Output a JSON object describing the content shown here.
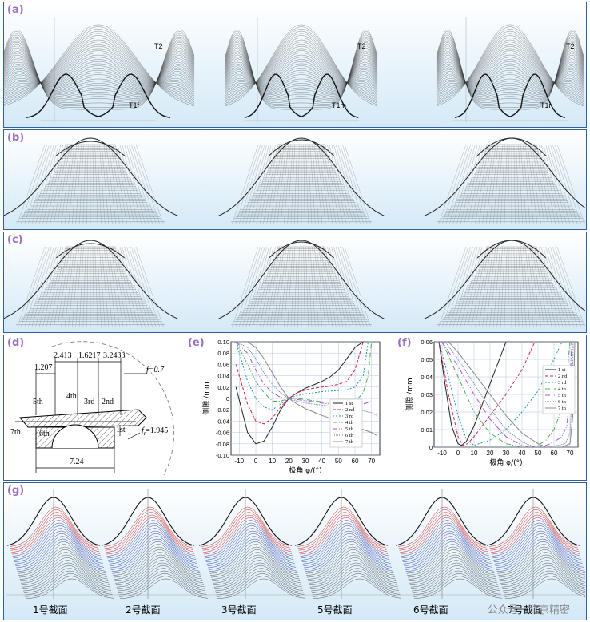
{
  "panels": {
    "a": {
      "label": "(a)",
      "curves": [
        "T2",
        "T1f",
        "T2",
        "T1m",
        "T2",
        "T1r"
      ]
    },
    "b": {
      "label": "(b)"
    },
    "c": {
      "label": "(c)"
    },
    "d": {
      "label": "(d)",
      "dims": {
        "d1": "1.207",
        "d2": "2.413",
        "d3": "1.6217",
        "d4": "3.2433",
        "f": "f=0.7",
        "fr": "f",
        "fr_sub": "r",
        "fr_val": "=1.945",
        "width": "7.24"
      },
      "teeth": [
        "5th",
        "4th",
        "3rd",
        "2nd",
        "7th",
        "6th",
        "1st"
      ]
    },
    "e": {
      "label": "(e)"
    },
    "f": {
      "label": "(f)"
    },
    "g": {
      "label": "(g)",
      "captions": [
        "1号截面",
        "2号截面",
        "3号截面",
        "5号截面",
        "6号截面",
        "7号截面"
      ]
    }
  },
  "watermark": "公众号 · 北京精密",
  "chart_data": [
    {
      "type": "line",
      "panel": "e",
      "xlabel": "极角 φ/(°)",
      "ylabel": "侧隙 /mm",
      "xlim": [
        -15,
        75
      ],
      "ylim": [
        -0.1,
        0.1
      ],
      "xticks": [
        -10,
        0,
        10,
        20,
        30,
        40,
        50,
        60,
        70
      ],
      "yticks": [
        -0.1,
        -0.08,
        -0.06,
        -0.04,
        -0.02,
        0,
        0.02,
        0.04,
        0.06,
        0.08,
        0.1
      ],
      "grid": true,
      "legend": "bottom-right",
      "series": [
        {
          "name": "1 st",
          "color": "#222222",
          "dash": "",
          "x": [
            -12,
            -5,
            0,
            5,
            10,
            15,
            20,
            25,
            30,
            35,
            40,
            45,
            50,
            55,
            60,
            65
          ],
          "y": [
            0.02,
            -0.06,
            -0.08,
            -0.075,
            -0.05,
            -0.02,
            0.0,
            0.01,
            0.018,
            0.024,
            0.03,
            0.038,
            0.05,
            0.07,
            0.09,
            0.1
          ]
        },
        {
          "name": "2 nd",
          "color": "#cc2255",
          "dash": "4,2",
          "x": [
            -12,
            -5,
            0,
            5,
            10,
            15,
            20,
            25,
            30,
            35,
            40,
            45,
            50,
            55,
            60,
            65
          ],
          "y": [
            0.06,
            -0.01,
            -0.04,
            -0.045,
            -0.035,
            -0.015,
            0.0,
            0.01,
            0.015,
            0.018,
            0.02,
            0.022,
            0.025,
            0.03,
            0.05,
            0.1
          ]
        },
        {
          "name": "3 rd",
          "color": "#2299aa",
          "dash": "2,2",
          "x": [
            -12,
            -5,
            0,
            5,
            10,
            15,
            20,
            25,
            30,
            35,
            40,
            45,
            50,
            55,
            60,
            65,
            68
          ],
          "y": [
            0.1,
            0.03,
            0.0,
            -0.015,
            -0.02,
            -0.01,
            0.0,
            0.005,
            0.008,
            0.01,
            0.012,
            0.013,
            0.014,
            0.015,
            0.02,
            0.04,
            0.1
          ]
        },
        {
          "name": "4 th",
          "color": "#55aa55",
          "dash": "6,2,1,2",
          "x": [
            -12,
            -5,
            0,
            5,
            10,
            15,
            20,
            25,
            30,
            35,
            40,
            45,
            50,
            55,
            60,
            65,
            68,
            70
          ],
          "y": [
            0.1,
            0.06,
            0.03,
            0.01,
            -0.005,
            -0.005,
            0.0,
            0.0,
            -0.002,
            -0.004,
            -0.006,
            -0.007,
            -0.008,
            -0.008,
            -0.006,
            0.01,
            0.04,
            0.1
          ]
        },
        {
          "name": "5 th",
          "color": "#aa55cc",
          "dash": "6,2,1,2,1,2",
          "x": [
            -12,
            -5,
            0,
            5,
            10,
            15,
            20,
            25,
            30,
            35,
            40,
            45,
            50,
            55,
            60,
            65,
            70
          ],
          "y": [
            0.1,
            0.08,
            0.05,
            0.025,
            0.01,
            0.002,
            0.0,
            -0.002,
            -0.004,
            -0.006,
            -0.008,
            -0.01,
            -0.012,
            -0.013,
            -0.012,
            -0.01,
            -0.005
          ]
        },
        {
          "name": "6 th",
          "color": "#6677aa",
          "dash": "1,1",
          "x": [
            -12,
            -5,
            0,
            5,
            10,
            15,
            20,
            25,
            30,
            35,
            40,
            45,
            50,
            55,
            60,
            65,
            70,
            73
          ],
          "y": [
            0.1,
            0.09,
            0.07,
            0.045,
            0.025,
            0.01,
            0.0,
            -0.005,
            -0.008,
            -0.01,
            -0.012,
            -0.014,
            -0.016,
            -0.018,
            -0.02,
            -0.022,
            -0.025,
            -0.03
          ]
        },
        {
          "name": "7 th",
          "color": "#888888",
          "dash": "",
          "x": [
            -12,
            -5,
            0,
            5,
            10,
            15,
            20,
            25,
            30,
            35,
            40,
            45,
            50,
            55,
            60,
            65,
            70,
            73
          ],
          "y": [
            0.1,
            0.1,
            0.09,
            0.07,
            0.045,
            0.02,
            0.0,
            -0.01,
            -0.018,
            -0.024,
            -0.03,
            -0.035,
            -0.04,
            -0.045,
            -0.05,
            -0.055,
            -0.06,
            -0.065
          ]
        }
      ]
    },
    {
      "type": "line",
      "panel": "f",
      "xlabel": "极角 φ/(°)",
      "ylabel": "侧隙 /mm",
      "xlim": [
        -15,
        75
      ],
      "ylim": [
        0,
        0.06
      ],
      "xticks": [
        -10,
        0,
        10,
        20,
        30,
        40,
        50,
        60,
        70
      ],
      "yticks": [
        0,
        0.01,
        0.02,
        0.03,
        0.04,
        0.05,
        0.06
      ],
      "grid": true,
      "legend": "top-right",
      "series": [
        {
          "name": "1 st",
          "color": "#222222",
          "dash": "",
          "x": [
            -12,
            -8,
            -4,
            0,
            2,
            5,
            10,
            15,
            20,
            25,
            30
          ],
          "y": [
            0.06,
            0.035,
            0.012,
            0.002,
            0.001,
            0.003,
            0.012,
            0.024,
            0.036,
            0.048,
            0.06
          ]
        },
        {
          "name": "2 nd",
          "color": "#cc2255",
          "dash": "4,2",
          "x": [
            -12,
            -6,
            0,
            3,
            6,
            10,
            20,
            30,
            40,
            48
          ],
          "y": [
            0.06,
            0.03,
            0.006,
            0.001,
            0.002,
            0.006,
            0.018,
            0.03,
            0.044,
            0.06
          ]
        },
        {
          "name": "3 rd",
          "color": "#2299aa",
          "dash": "2,2",
          "x": [
            -12,
            -6,
            0,
            5,
            10,
            20,
            30,
            40,
            50,
            60,
            65
          ],
          "y": [
            0.06,
            0.04,
            0.018,
            0.005,
            0.001,
            0.004,
            0.01,
            0.02,
            0.032,
            0.05,
            0.06
          ]
        },
        {
          "name": "4 th",
          "color": "#55aa55",
          "dash": "6,2,1,2",
          "x": [
            -10,
            0,
            10,
            20,
            30,
            40,
            45,
            50,
            55,
            60,
            65,
            68,
            70
          ],
          "y": [
            0.06,
            0.04,
            0.02,
            0.008,
            0.002,
            0.0,
            0.0,
            0.001,
            0.004,
            0.01,
            0.022,
            0.04,
            0.06
          ]
        },
        {
          "name": "5 th",
          "color": "#aa55cc",
          "dash": "6,2,1,2,1,2",
          "x": [
            -10,
            0,
            10,
            20,
            30,
            40,
            45,
            50,
            55,
            60,
            65,
            68,
            70,
            71
          ],
          "y": [
            0.06,
            0.046,
            0.03,
            0.016,
            0.006,
            0.001,
            0.0,
            0.0,
            0.001,
            0.003,
            0.006,
            0.012,
            0.03,
            0.06
          ]
        },
        {
          "name": "6 th",
          "color": "#6677aa",
          "dash": "1,1",
          "x": [
            -8,
            0,
            10,
            20,
            30,
            40,
            48,
            55,
            62,
            67,
            70,
            71.5,
            72
          ],
          "y": [
            0.06,
            0.05,
            0.036,
            0.022,
            0.01,
            0.003,
            0.0,
            0.0,
            0.001,
            0.002,
            0.008,
            0.03,
            0.06
          ]
        },
        {
          "name": "7 th",
          "color": "#888888",
          "dash": "",
          "x": [
            -6,
            0,
            10,
            20,
            30,
            40,
            50,
            55,
            60,
            65,
            70,
            72,
            73
          ],
          "y": [
            0.06,
            0.054,
            0.042,
            0.03,
            0.018,
            0.008,
            0.002,
            0.0,
            0.0,
            0.0,
            0.002,
            0.02,
            0.06
          ]
        }
      ]
    }
  ]
}
